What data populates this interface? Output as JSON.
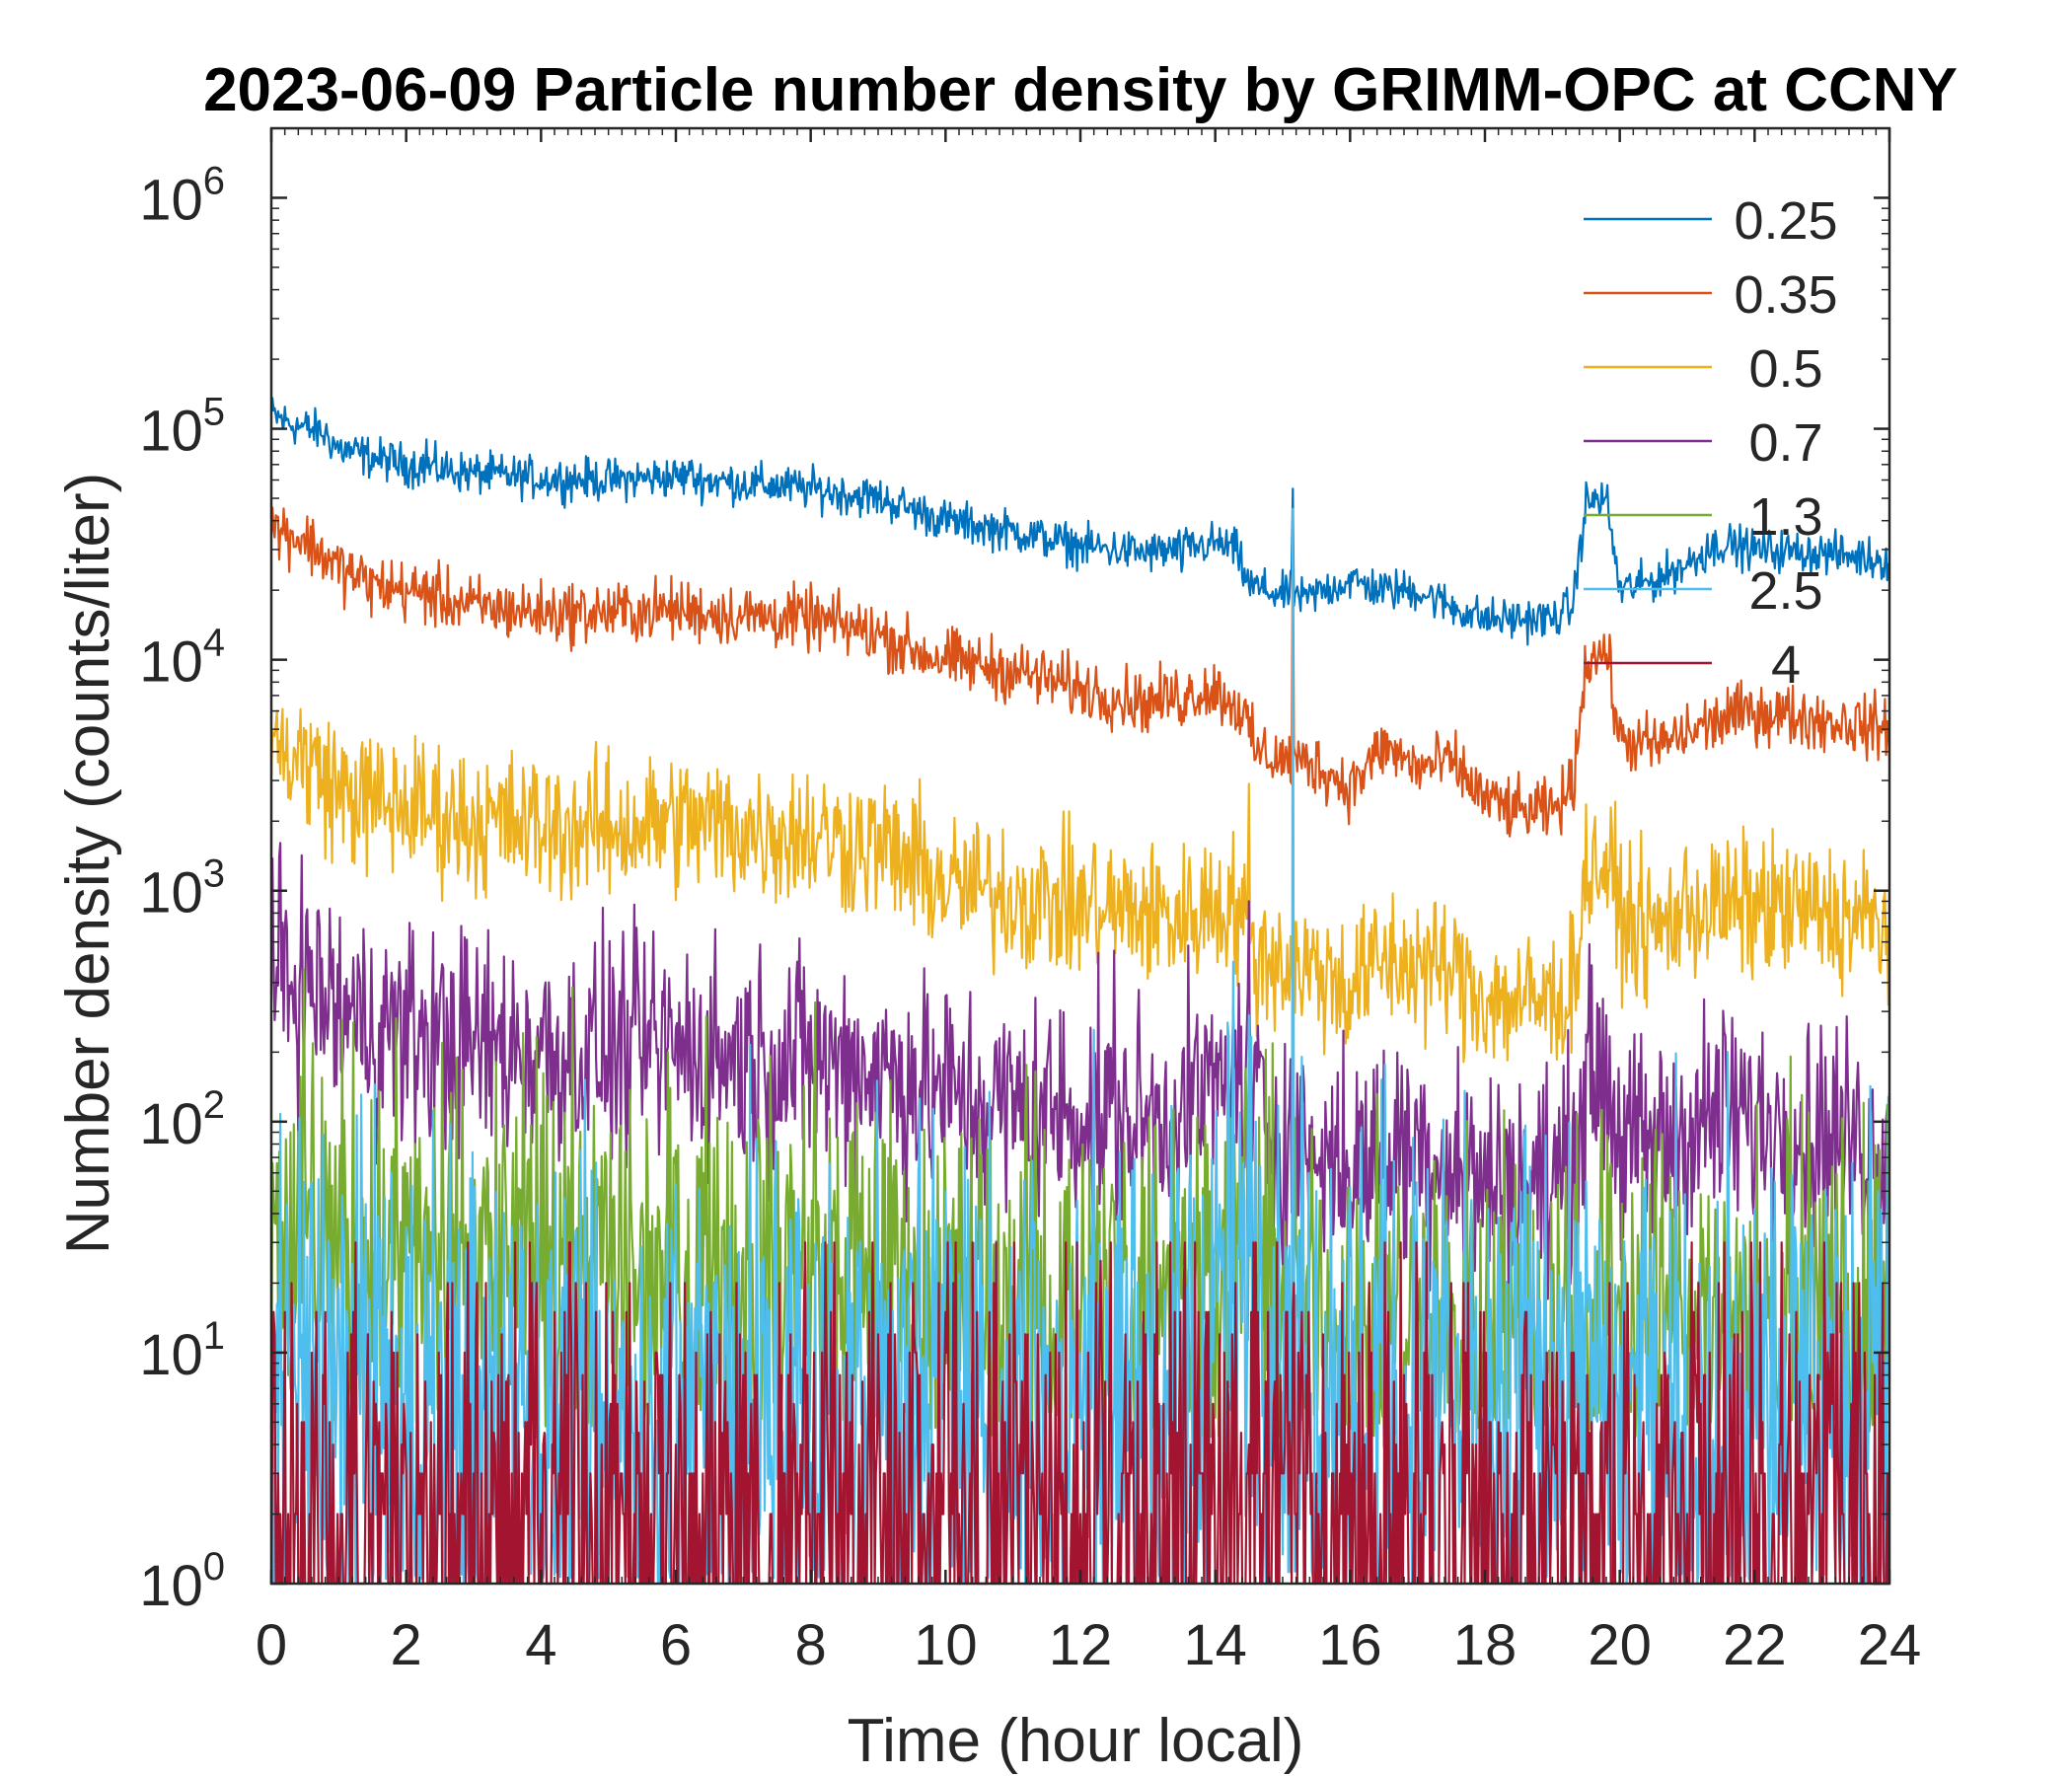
{
  "chart_data": {
    "type": "line",
    "title": "2023-06-09 Particle number density by GRIMM-OPC at CCNY",
    "xlabel": "Time (hour local)",
    "ylabel": "Number density (counts/liter)",
    "xlim": [
      0,
      24
    ],
    "xticks": [
      "0",
      "2",
      "4",
      "6",
      "8",
      "10",
      "12",
      "14",
      "16",
      "18",
      "20",
      "22",
      "24"
    ],
    "yscale": "log",
    "ylim": [
      1,
      2000000
    ],
    "yticks": [
      {
        "base": "10",
        "exp": "0",
        "value": 1
      },
      {
        "base": "10",
        "exp": "1",
        "value": 10
      },
      {
        "base": "10",
        "exp": "2",
        "value": 100
      },
      {
        "base": "10",
        "exp": "3",
        "value": 1000
      },
      {
        "base": "10",
        "exp": "4",
        "value": 10000
      },
      {
        "base": "10",
        "exp": "5",
        "value": 100000
      },
      {
        "base": "10",
        "exp": "6",
        "value": 1000000
      }
    ],
    "legend": "top-right",
    "series": [
      {
        "name": "0.25",
        "color": "#0072BD",
        "noise": 0.02,
        "x": [
          0,
          0.3,
          0.8,
          1.0,
          1.5,
          2.0,
          3.0,
          4.0,
          5.0,
          6.0,
          7.0,
          8.0,
          9.0,
          9.5,
          10.0,
          11.0,
          12.0,
          13.0,
          13.5,
          14.0,
          14.3,
          14.5,
          15.0,
          15.15,
          15.3,
          15.6,
          16.0,
          16.5,
          17.0,
          17.5,
          18.0,
          18.5,
          19.0,
          19.3,
          19.5,
          19.8,
          20.0,
          20.5,
          21.0,
          21.5,
          22.0,
          23.0,
          24.0
        ],
        "y": [
          115000,
          105000,
          95000,
          82000,
          75000,
          70000,
          64000,
          61000,
          60000,
          62000,
          58000,
          55000,
          50000,
          45000,
          40000,
          36000,
          31000,
          29000,
          30000,
          32000,
          30000,
          21000,
          19000,
          20000,
          18000,
          20000,
          22000,
          20000,
          20000,
          17000,
          15000,
          15000,
          15000,
          17000,
          48000,
          50000,
          20000,
          22000,
          26000,
          32000,
          30000,
          29000,
          27000
        ],
        "spikes": [
          [
            2.3,
            90000
          ],
          [
            6.2,
            72000
          ],
          [
            15.15,
            55000
          ],
          [
            21.3,
            35000
          ],
          [
            13.5,
            24000
          ]
        ]
      },
      {
        "name": "0.35",
        "color": "#D95319",
        "noise": 0.03,
        "x": [
          0,
          0.5,
          1.0,
          1.5,
          2.0,
          3.0,
          4.0,
          5.0,
          6.0,
          7.0,
          8.0,
          9.0,
          9.5,
          10.0,
          11.0,
          12.0,
          13.0,
          14.0,
          14.4,
          14.6,
          15.0,
          15.5,
          16.0,
          16.5,
          17.0,
          17.5,
          18.0,
          18.5,
          19.0,
          19.3,
          19.5,
          19.8,
          20.0,
          20.5,
          21.0,
          21.5,
          22.0,
          23.0,
          24.0
        ],
        "y": [
          38000,
          33000,
          25000,
          21000,
          20000,
          17000,
          16000,
          16000,
          16500,
          15500,
          15000,
          13000,
          11000,
          10000,
          9000,
          7500,
          6500,
          7500,
          6000,
          4000,
          3700,
          3500,
          2800,
          4200,
          3400,
          3600,
          2500,
          2200,
          2200,
          2800,
          10000,
          11000,
          4500,
          4200,
          4800,
          5500,
          6000,
          5500,
          5000
        ],
        "spikes": [
          [
            2.3,
            24000
          ],
          [
            15.15,
            42000
          ],
          [
            13.5,
            5200
          ]
        ]
      },
      {
        "name": "0.5",
        "color": "#EDB120",
        "noise": 0.07,
        "x": [
          0,
          0.5,
          1.0,
          1.5,
          2.0,
          3.0,
          4.0,
          5.0,
          6.0,
          7.0,
          8.0,
          9.0,
          9.5,
          10.0,
          11.0,
          12.0,
          13.0,
          13.5,
          14.0,
          14.4,
          14.6,
          15.0,
          15.5,
          16.0,
          16.5,
          17.0,
          17.5,
          18.0,
          18.5,
          19.0,
          19.3,
          19.5,
          19.8,
          20.0,
          20.5,
          21.0,
          21.5,
          22.0,
          23.0,
          24.0
        ],
        "y": [
          4200,
          3700,
          2700,
          2400,
          2300,
          2000,
          1900,
          1850,
          2000,
          1850,
          1750,
          1550,
          1300,
          1050,
          950,
          850,
          800,
          750,
          900,
          800,
          520,
          500,
          450,
          380,
          500,
          480,
          450,
          350,
          330,
          330,
          380,
          1200,
          1300,
          800,
          650,
          850,
          850,
          850,
          800,
          700
        ],
        "spikes": [
          [
            14.5,
            2900
          ],
          [
            12.2,
            1600
          ],
          [
            13.5,
            550
          ],
          [
            18.0,
            240
          ]
        ]
      },
      {
        "name": "0.7",
        "color": "#7E2F8E",
        "noise": 0.11,
        "x": [
          0,
          0.5,
          1.0,
          1.5,
          2.0,
          3.0,
          4.0,
          5.0,
          6.0,
          7.0,
          8.0,
          9.0,
          9.5,
          10.0,
          11.0,
          12.0,
          13.0,
          13.5,
          14.0,
          14.4,
          14.6,
          15.0,
          15.5,
          16.0,
          16.5,
          17.0,
          17.5,
          18.0,
          18.5,
          19.0,
          19.3,
          19.5,
          19.8,
          20.0,
          20.5,
          21.0,
          21.5,
          22.0,
          23.0,
          24.0
        ],
        "y": [
          430,
          400,
          300,
          260,
          240,
          215,
          205,
          200,
          210,
          190,
          185,
          170,
          150,
          125,
          115,
          110,
          100,
          110,
          140,
          160,
          120,
          80,
          70,
          65,
          75,
          80,
          70,
          55,
          55,
          55,
          70,
          160,
          170,
          80,
          75,
          95,
          105,
          100,
          90,
          80
        ],
        "spikes": [
          [
            14.5,
            900
          ],
          [
            12.5,
            550
          ],
          [
            10.0,
            350
          ],
          [
            15.15,
            200
          ]
        ]
      },
      {
        "name": "1.3",
        "color": "#77AC30",
        "noise": 0.2,
        "floor": 5,
        "x": [
          0,
          0.5,
          1.0,
          1.5,
          2.0,
          4.0,
          6.0,
          8.0,
          10.0,
          12.0,
          14.0,
          14.4,
          15.0,
          16.0,
          18.0,
          20.0,
          22.0,
          24.0
        ],
        "y": [
          40,
          35,
          30,
          25,
          24,
          24,
          24,
          22,
          17,
          15,
          25,
          30,
          15,
          12,
          12,
          15,
          13,
          12
        ],
        "spikes": [
          [
            14.4,
            70
          ],
          [
            10.0,
            50
          ],
          [
            12.5,
            45
          ]
        ]
      },
      {
        "name": "2.5",
        "color": "#4DBEEE",
        "noise": 0.28,
        "floor": 1,
        "dropout": 0.02,
        "x": [
          0,
          1.0,
          2.0,
          4.0,
          6.0,
          8.0,
          10.0,
          12.0,
          13.5,
          14.0,
          14.5,
          15.0,
          16.0,
          18.0,
          20.0,
          22.0,
          24.0
        ],
        "y": [
          8,
          7,
          5,
          5,
          5,
          5,
          6,
          6,
          7,
          15,
          25,
          10,
          7,
          6,
          6,
          6,
          6
        ],
        "spikes": [
          [
            15.15,
            45000
          ],
          [
            12.2,
            250
          ],
          [
            14.6,
            100
          ],
          [
            10.0,
            50
          ]
        ]
      },
      {
        "name": "4",
        "color": "#A2142F",
        "noise": 0.3,
        "sparse": 0.45,
        "x": [
          0,
          4,
          8,
          12,
          14,
          15,
          18,
          24
        ],
        "y": [
          2,
          2,
          2,
          2,
          6,
          4,
          2,
          2
        ],
        "spikes": [
          [
            14.6,
            30
          ],
          [
            14.3,
            20
          ],
          [
            10.0,
            15
          ],
          [
            12.3,
            25
          ],
          [
            15.15,
            15
          ]
        ]
      }
    ]
  }
}
